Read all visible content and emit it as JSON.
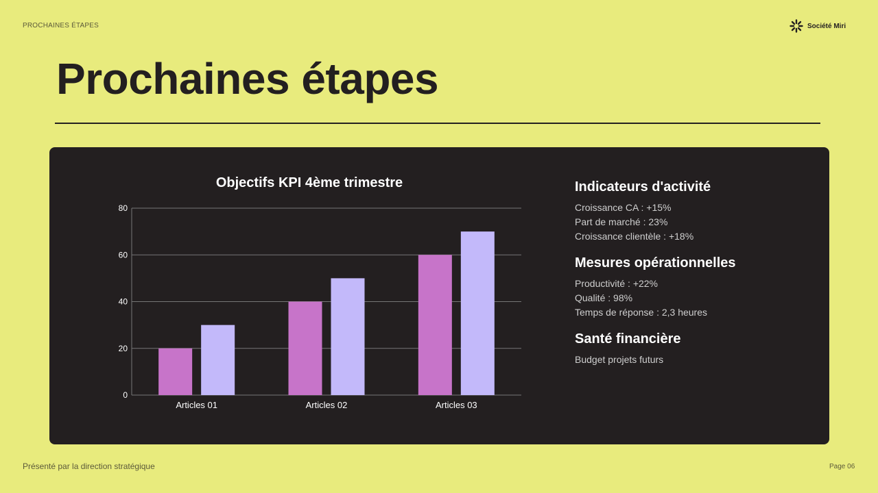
{
  "header": {
    "section_label": "PROCHAINES ÉTAPES",
    "brand": "Société Miri",
    "title": "Prochaines étapes"
  },
  "chart_data": {
    "type": "bar",
    "title": "Objectifs KPI 4ème trimestre",
    "categories": [
      "Articles 01",
      "Articles 02",
      "Articles 03"
    ],
    "series": [
      {
        "values": [
          20,
          40,
          60
        ],
        "color": "#c774c9"
      },
      {
        "values": [
          30,
          50,
          70
        ],
        "color": "#c3b9fa"
      }
    ],
    "ylim": [
      0,
      80
    ],
    "yticks": [
      0,
      20,
      40,
      60,
      80
    ],
    "grid": true,
    "legend": "none"
  },
  "side": [
    {
      "title": "Indicateurs d'activité",
      "items": [
        "Croissance CA : +15%",
        "Part de marché : 23%",
        "Croissance clientèle : +18%"
      ]
    },
    {
      "title": "Mesures opérationnelles",
      "items": [
        "Productivité : +22%",
        "Qualité : 98%",
        "Temps de réponse : 2,3 heures"
      ]
    },
    {
      "title": "Santé financière",
      "items": [
        "Budget projets futurs"
      ]
    }
  ],
  "footer": {
    "presenter": "Présenté par la direction stratégique",
    "page": "Page 06"
  }
}
